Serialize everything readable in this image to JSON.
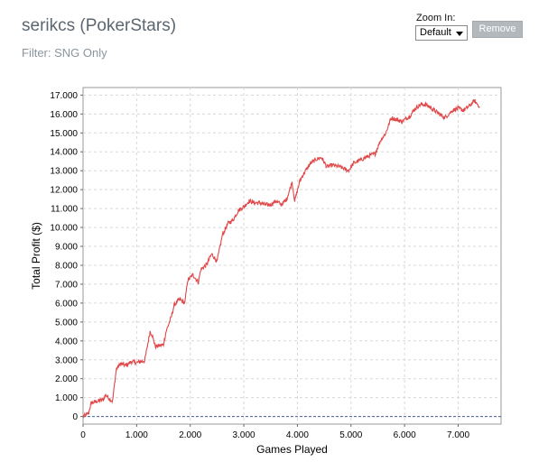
{
  "header": {
    "title": "serikcs (PokerStars)",
    "filter": "Filter: SNG Only"
  },
  "controls": {
    "zoom_label": "Zoom In:",
    "zoom_value": "Default",
    "remove_label": "Remove"
  },
  "chart_data": {
    "type": "line",
    "xlabel": "Games Played",
    "ylabel": "Total Profit ($)",
    "xlim": [
      0,
      7800
    ],
    "ylim": [
      -400,
      17400
    ],
    "x_ticks": [
      0,
      1000,
      2000,
      3000,
      4000,
      5000,
      6000,
      7000
    ],
    "x_tick_labels": [
      "0",
      "1.000",
      "2.000",
      "3.000",
      "4.000",
      "5.000",
      "6.000",
      "7.000"
    ],
    "y_ticks": [
      0,
      1000,
      2000,
      3000,
      4000,
      5000,
      6000,
      7000,
      8000,
      9000,
      10000,
      11000,
      12000,
      13000,
      14000,
      15000,
      16000,
      17000
    ],
    "y_tick_labels": [
      "0",
      "1.000",
      "2.000",
      "3.000",
      "4.000",
      "5.000",
      "6.000",
      "7.000",
      "8.000",
      "9.000",
      "10.000",
      "11.000",
      "12.000",
      "13.000",
      "14.000",
      "15.000",
      "16.000",
      "17.000"
    ],
    "grid": true,
    "line_color": "#e0484a",
    "zero_line_color": "#4a5a9a",
    "series": [
      {
        "x": [
          0,
          100,
          150,
          250,
          380,
          420,
          550,
          620,
          700,
          800,
          900,
          1000,
          1150,
          1250,
          1290,
          1350,
          1500,
          1550,
          1650,
          1700,
          1800,
          1900,
          1950,
          2050,
          2150,
          2200,
          2300,
          2400,
          2500,
          2600,
          2700,
          2800,
          2900,
          3000,
          3100,
          3200,
          3300,
          3400,
          3500,
          3600,
          3700,
          3800,
          3900,
          3950,
          4050,
          4150,
          4250,
          4350,
          4450,
          4550,
          4650,
          4800,
          4950,
          5050,
          5200,
          5350,
          5450,
          5550,
          5650,
          5750,
          5850,
          5950,
          6100,
          6200,
          6300,
          6400,
          6550,
          6650,
          6750,
          6900,
          7000,
          7100,
          7200,
          7300,
          7400
        ],
        "y": [
          0,
          150,
          700,
          800,
          900,
          1150,
          800,
          2500,
          2800,
          2700,
          2900,
          2850,
          2950,
          4500,
          4300,
          3700,
          3800,
          4500,
          5300,
          5900,
          6200,
          6000,
          7200,
          7500,
          7100,
          7800,
          8000,
          8600,
          8200,
          9600,
          10200,
          10400,
          10900,
          11100,
          11400,
          11300,
          11300,
          11200,
          11200,
          11400,
          11200,
          11500,
          12400,
          11400,
          12500,
          13000,
          13400,
          13600,
          13700,
          13200,
          13300,
          13200,
          13000,
          13400,
          13600,
          13800,
          13900,
          14600,
          15000,
          15800,
          15700,
          15600,
          15900,
          16300,
          16500,
          16500,
          16200,
          16000,
          15800,
          16200,
          16300,
          16200,
          16400,
          16700,
          16400
        ]
      }
    ]
  }
}
